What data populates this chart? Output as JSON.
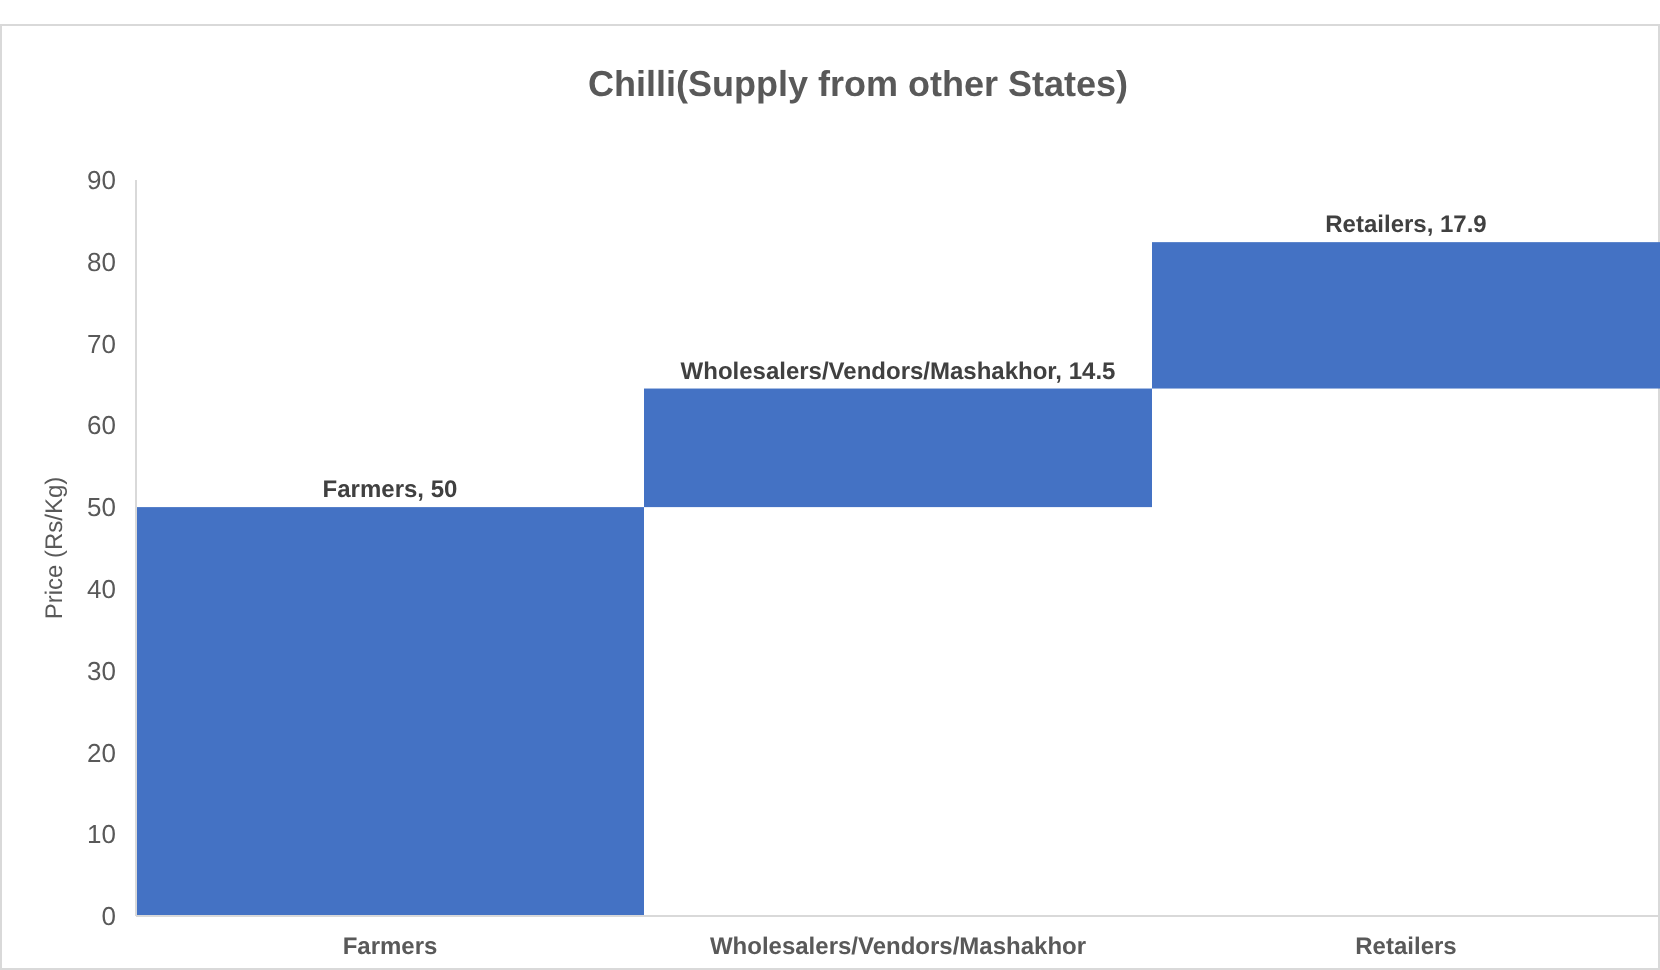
{
  "chart_data": {
    "type": "bar",
    "title": "Chilli(Supply from other States)",
    "ylabel": "Price (Rs/Kg)",
    "categories": [
      "Farmers",
      "Wholesalers/Vendors/Mashakhor",
      "Retailers"
    ],
    "values": [
      50,
      14.5,
      17.9
    ],
    "base": [
      0,
      50,
      64.5
    ],
    "color": "#4472c4",
    "value_labels": [
      "Farmers, 50",
      "Wholesalers/Vendors/Mashakhor, 14.5",
      "Retailers, 17.9"
    ],
    "ylim": [
      0,
      90
    ],
    "yticks": [
      0,
      10,
      20,
      30,
      40,
      50,
      60,
      70,
      80,
      90
    ],
    "grid": false
  }
}
